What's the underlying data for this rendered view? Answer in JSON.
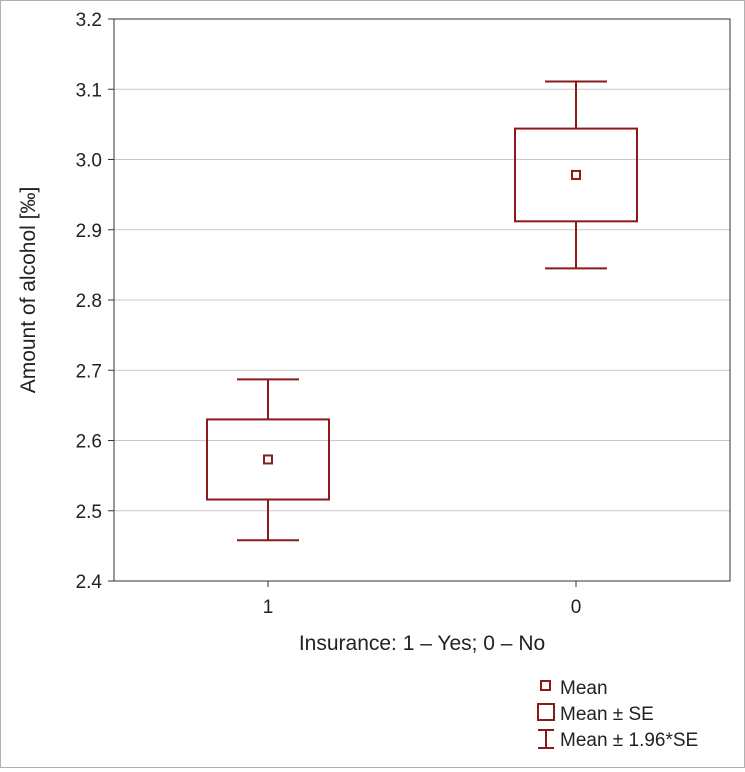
{
  "chart_data": {
    "type": "box",
    "xlabel": "Insurance: 1 – Yes; 0 – No",
    "ylabel": "Amount of alcohol [‰]",
    "ylim": [
      2.4,
      3.2
    ],
    "yticks": [
      "2.4",
      "2.5",
      "2.6",
      "2.7",
      "2.8",
      "2.9",
      "3.0",
      "3.1",
      "3.2"
    ],
    "grid": true,
    "categories": [
      "1",
      "0"
    ],
    "groups": [
      {
        "category": "1",
        "mean": 2.573,
        "se_low": 2.516,
        "se_high": 2.63,
        "ci_low": 2.458,
        "ci_high": 2.687
      },
      {
        "category": "0",
        "mean": 2.978,
        "se_low": 2.912,
        "se_high": 3.044,
        "ci_low": 2.845,
        "ci_high": 3.111
      }
    ],
    "legend": {
      "position": "bottom-right",
      "entries": [
        "Mean",
        "Mean ± SE",
        "Mean ± 1.96*SE"
      ]
    },
    "color": "#8b1a1a"
  }
}
